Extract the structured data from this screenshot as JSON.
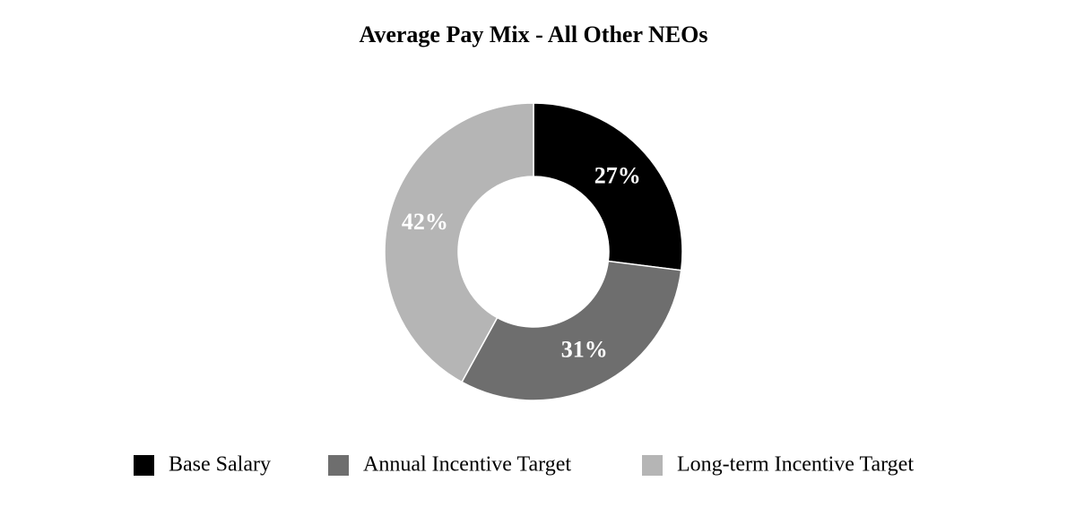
{
  "chart_data": {
    "type": "donut",
    "title": "Average Pay Mix - All Other NEOs",
    "categories": [
      "Base Salary",
      "Annual Incentive Target",
      "Long-term Incentive Target"
    ],
    "values": [
      27,
      31,
      42
    ],
    "value_labels": [
      "27%",
      "31%",
      "42%"
    ],
    "colors": [
      "#000000",
      "#6e6e6e",
      "#b5b5b5"
    ],
    "legend": "bottom"
  }
}
